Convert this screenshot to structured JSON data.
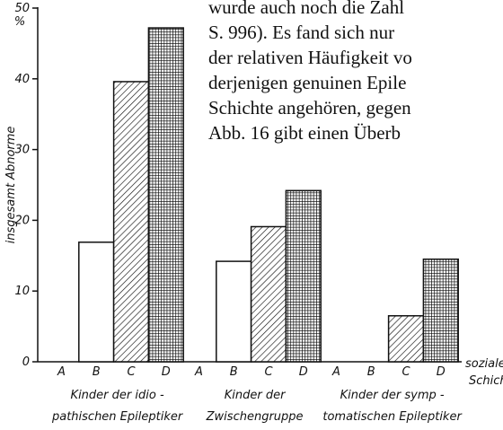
{
  "page_text": [
    "wurde auch noch die Zahl",
    "S. 996).  Es fand sich nur",
    "der relativen Häufigkeit vo",
    "derjenigen genuinen Epile",
    "Schichte angehören, gegen",
    "Abb. 16 gibt einen Überb"
  ],
  "chart_data": {
    "type": "bar",
    "y_label": "insgesamt Abnorme",
    "y_unit": "%",
    "x_label": [
      "soziale",
      "Schichte"
    ],
    "categories": [
      [
        "Kinder der idio -",
        "pathischen Epileptiker"
      ],
      [
        "Kinder der",
        "Zwischengruppe"
      ],
      [
        "Kinder der symp -",
        "tomatischen Epileptiker"
      ]
    ],
    "series": [
      {
        "name": "A",
        "pattern": "none",
        "values": [
          0,
          0,
          0
        ]
      },
      {
        "name": "B",
        "pattern": "white",
        "values": [
          16.9,
          14.2,
          0
        ]
      },
      {
        "name": "C",
        "pattern": "hatch",
        "values": [
          39.6,
          19.1,
          6.5
        ]
      },
      {
        "name": "D",
        "pattern": "grid",
        "values": [
          47.2,
          24.2,
          14.5
        ]
      }
    ],
    "ylim": [
      0,
      50
    ],
    "yticks": [
      0,
      10,
      20,
      30,
      40,
      50
    ]
  }
}
